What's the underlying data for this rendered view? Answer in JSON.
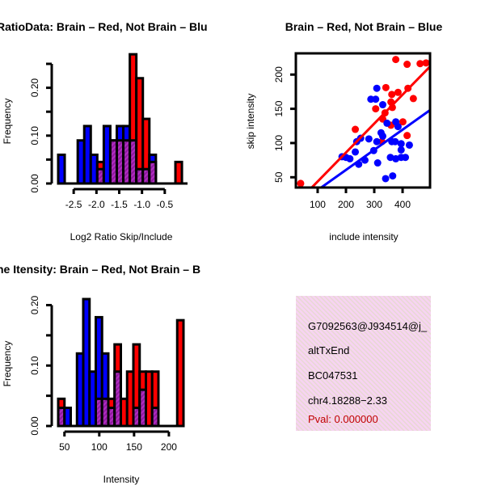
{
  "colors": {
    "brain": "#ff0000",
    "not_brain": "#0000ff",
    "overlap": "#9a1fa8",
    "pval": "#c00000",
    "box_bg": "#f6d6f0"
  },
  "chart_data": [
    {
      "type": "bar",
      "title": "RatioData: Brain – Red, Not Brain – Blu",
      "xlabel": "Log2 Ratio Skip/Include",
      "ylabel": "Frequency",
      "xticks": [
        "-2.5",
        "-2.0",
        "-1.5",
        "-1.0",
        "-0.5"
      ],
      "xtick_values": [
        -2.5,
        -2.0,
        -1.5,
        -1.0,
        -0.5
      ],
      "yticks": [
        "0.00",
        "0.10",
        "0.20"
      ],
      "ytick_values": [
        0,
        0.05,
        0.1,
        0.15,
        0.2,
        0.25
      ],
      "ylabel_ticks": [
        0,
        0.1,
        0.2
      ],
      "xlim": [
        -2.84,
        0.0
      ],
      "ylim": [
        0,
        0.25
      ],
      "bin_width": 0.1428,
      "bin_starts": [
        -2.84,
        -2.697,
        -2.554,
        -2.411,
        -2.268,
        -2.125,
        -1.982,
        -1.839,
        -1.696,
        -1.553,
        -1.41,
        -1.267,
        -1.124,
        -0.981,
        -0.838,
        -0.695,
        -0.552,
        -0.409,
        -0.266,
        -0.123
      ],
      "series": [
        {
          "name": "Brain",
          "color": "red",
          "values": [
            0,
            0,
            0,
            0,
            0,
            0,
            0.045,
            0,
            0.09,
            0.09,
            0.09,
            0.27,
            0.22,
            0.135,
            0.045,
            0,
            0,
            0,
            0.045,
            0
          ]
        },
        {
          "name": "Not Brain",
          "color": "blue",
          "values": [
            0.06,
            0,
            0,
            0.09,
            0.12,
            0.06,
            0.03,
            0.12,
            0.09,
            0.12,
            0.12,
            0.09,
            0.03,
            0.03,
            0.06,
            0,
            0,
            0,
            0,
            0
          ]
        }
      ]
    },
    {
      "type": "scatter",
      "title": "Brain – Red, Not Brain – Blue",
      "xlabel": "include intensity",
      "ylabel": "skip intensity",
      "xticks": [
        "100",
        "200",
        "300",
        "400"
      ],
      "xtick_values": [
        100,
        200,
        300,
        400
      ],
      "yticks": [
        "50",
        "100",
        "150",
        "200"
      ],
      "ytick_values": [
        50,
        100,
        150,
        200
      ],
      "xlim": [
        23,
        497
      ],
      "ylim": [
        35,
        231
      ],
      "series": [
        {
          "name": "Brain",
          "color": "red",
          "points": [
            [
              40,
              41
            ],
            [
              376,
              222
            ],
            [
              416,
              215
            ],
            [
              462,
              216
            ],
            [
              483,
              217
            ],
            [
              341,
              181
            ],
            [
              419,
              180
            ],
            [
              362,
              171
            ],
            [
              384,
              174
            ],
            [
              438,
              165
            ],
            [
              359,
              160
            ],
            [
              305,
              150
            ],
            [
              364,
              152
            ],
            [
              338,
              144
            ],
            [
              330,
              135
            ],
            [
              359,
              126
            ],
            [
              233,
              120
            ],
            [
              401,
              131
            ],
            [
              416,
              111
            ],
            [
              327,
              102
            ]
          ],
          "fit": {
            "intercept": 1.5,
            "slope": 0.423
          }
        },
        {
          "name": "Not Brain",
          "color": "blue",
          "points": [
            [
              309,
              180
            ],
            [
              288,
              164
            ],
            [
              305,
              164
            ],
            [
              330,
              156
            ],
            [
              345,
              129
            ],
            [
              376,
              131
            ],
            [
              384,
              124
            ],
            [
              324,
              115
            ],
            [
              330,
              110
            ],
            [
              252,
              107
            ],
            [
              281,
              106
            ],
            [
              238,
              102
            ],
            [
              309,
              102
            ],
            [
              362,
              102
            ],
            [
              374,
              102
            ],
            [
              395,
              99
            ],
            [
              424,
              97
            ],
            [
              395,
              90
            ],
            [
              298,
              89
            ],
            [
              233,
              87
            ],
            [
              186,
              80
            ],
            [
              200,
              79
            ],
            [
              214,
              77
            ],
            [
              357,
              79
            ],
            [
              376,
              77
            ],
            [
              395,
              79
            ],
            [
              410,
              79
            ],
            [
              267,
              75
            ],
            [
              245,
              69
            ],
            [
              312,
              71
            ],
            [
              340,
              48
            ],
            [
              365,
              52
            ]
          ],
          "fit": {
            "intercept": 1.9,
            "slope": 0.294
          }
        }
      ]
    },
    {
      "type": "bar",
      "title": "ne Itensity: Brain – Red, Not Brain – B",
      "xlabel": "Intensity",
      "ylabel": "Frequency",
      "xticks": [
        "50",
        "100",
        "150",
        "200"
      ],
      "xtick_values": [
        50,
        100,
        150,
        200
      ],
      "yticks": [
        "0.00",
        "0.10",
        "0.20"
      ],
      "ytick_values": [
        0,
        0.05,
        0.1,
        0.15,
        0.2
      ],
      "ylabel_ticks": [
        0,
        0.1,
        0.2
      ],
      "xlim": [
        41,
        221
      ],
      "ylim": [
        0,
        0.21
      ],
      "bin_width": 9,
      "bin_starts": [
        41,
        50,
        59,
        68,
        77,
        86,
        95,
        104,
        113,
        122,
        131,
        140,
        149,
        158,
        167,
        176,
        185,
        194,
        203,
        212
      ],
      "series": [
        {
          "name": "Brain",
          "color": "red",
          "values": [
            0.045,
            0,
            0,
            0,
            0,
            0,
            0.045,
            0.045,
            0.045,
            0.135,
            0.045,
            0.09,
            0.135,
            0.09,
            0.09,
            0.09,
            0,
            0,
            0,
            0.175
          ]
        },
        {
          "name": "Not Brain",
          "color": "blue",
          "values": [
            0.03,
            0.03,
            0,
            0.12,
            0.21,
            0.09,
            0.18,
            0.12,
            0.03,
            0.09,
            0,
            0,
            0.03,
            0.06,
            0,
            0.03,
            0,
            0,
            0,
            0
          ]
        }
      ]
    }
  ],
  "info_box": {
    "lines": [
      "G7092563@J934514@j_",
      "altTxEnd",
      "BC047531",
      "chr4.18288−2.33"
    ],
    "pval": "Pval: 0.000000"
  }
}
